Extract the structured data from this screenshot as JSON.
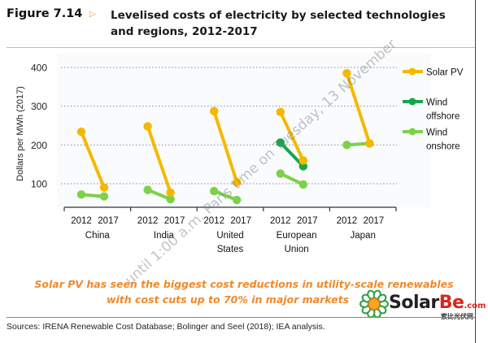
{
  "figure": {
    "number": "Figure 7.14",
    "arrow_icon": "triangle-right-icon",
    "title": "Levelised costs of electricity by selected technologies and regions, 2012-2017"
  },
  "chart_data": {
    "type": "line",
    "title": "Levelised costs of electricity by selected technologies and regions, 2012-2017",
    "xlabel": "",
    "ylabel": "Dollars per MWh (2017)",
    "ylim": [
      0,
      420
    ],
    "yticks": [
      100,
      200,
      300,
      400
    ],
    "grid": "horizontal-dotted",
    "legend_position": "right",
    "groups": [
      "China",
      "India",
      "United States",
      "European Union",
      "Japan"
    ],
    "group_labels": [
      [
        "China"
      ],
      [
        "India"
      ],
      [
        "United",
        "States"
      ],
      [
        "European",
        "Union"
      ],
      [
        "Japan"
      ]
    ],
    "x": [
      "2012",
      "2017"
    ],
    "series": [
      {
        "name": "Solar PV",
        "color": "#f5b800",
        "values": {
          "China": [
            234,
            90
          ],
          "India": [
            248,
            77
          ],
          "United States": [
            287,
            104
          ],
          "European Union": [
            285,
            160
          ],
          "Japan": [
            385,
            204
          ]
        }
      },
      {
        "name": "Wind offshore",
        "color": "#12a84a",
        "values": {
          "European Union": [
            206,
            145
          ]
        }
      },
      {
        "name": "Wind onshore",
        "color": "#7dd14a",
        "values": {
          "China": [
            72,
            67
          ],
          "India": [
            84,
            60
          ],
          "United States": [
            81,
            58
          ],
          "European Union": [
            126,
            98
          ],
          "Japan": [
            200,
            204
          ]
        }
      }
    ],
    "legend": [
      {
        "label": [
          "Solar PV"
        ],
        "color": "#f5b800"
      },
      {
        "label": [
          "Wind",
          "offshore"
        ],
        "color": "#12a84a"
      },
      {
        "label": [
          "Wind",
          "onshore"
        ],
        "color": "#7dd14a"
      }
    ]
  },
  "note": {
    "line1": "Solar PV has seen the biggest cost reductions in utility-scale renewables",
    "line2": "with cost cuts up to 70% in major markets",
    "color": "#f0892b"
  },
  "sources": "Sources: IRENA Renewable Cost Database; Bolinger and Seel (2018); IEA analysis.",
  "watermark": "until 1:00 a.m. Paris time on Tuesday, 13 November",
  "logo": {
    "icon": "sunflower-logo-icon",
    "text_main": "Solar",
    "text_accent": "Be",
    "text_suffix": ".com",
    "subtitle": "索比光伏网"
  }
}
